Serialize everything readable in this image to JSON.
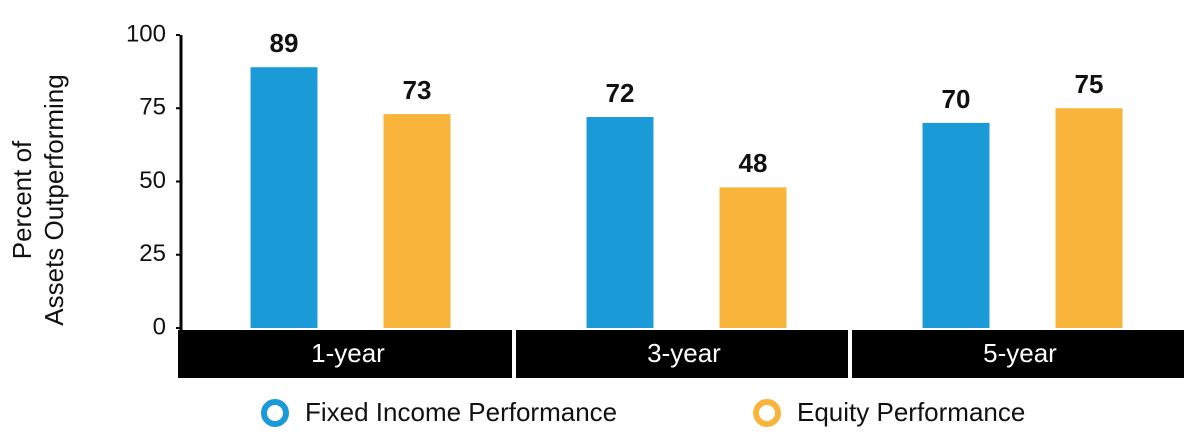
{
  "chart_data": {
    "type": "bar",
    "ylabel": [
      "Percent of",
      "Assets Outperforming"
    ],
    "categories": [
      "1-year",
      "3-year",
      "5-year"
    ],
    "series": [
      {
        "name": "Fixed Income Performance",
        "color": "#1a9bd7",
        "values": [
          89,
          72,
          70
        ]
      },
      {
        "name": "Equity Performance",
        "color": "#f9b43c",
        "values": [
          73,
          48,
          75
        ]
      }
    ],
    "ylim": [
      0,
      100
    ],
    "yticks": [
      0,
      25,
      50,
      75,
      100
    ]
  }
}
